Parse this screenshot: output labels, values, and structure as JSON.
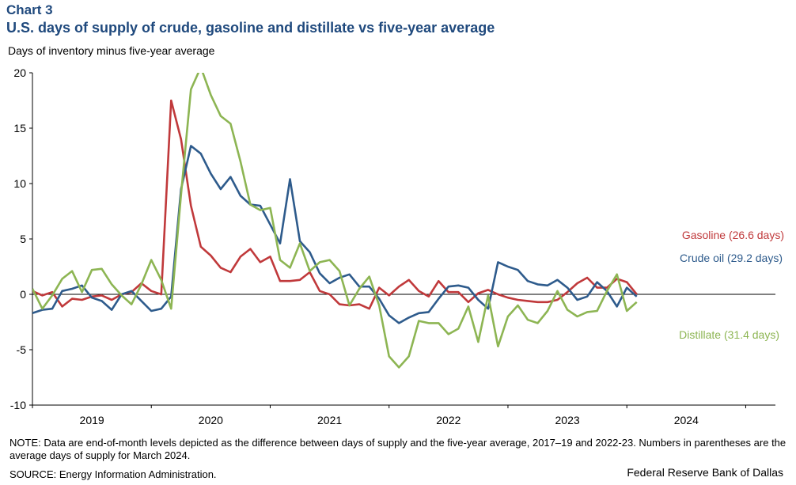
{
  "header": {
    "chart_label": "Chart 3",
    "title": "U.S. days of supply of crude, gasoline and distillate vs five-year average",
    "y_axis_title": "Days of inventory  minus five-year average"
  },
  "footer": {
    "note": "NOTE: Data are end-of-month levels depicted as the difference between days of supply and the five-year average, 2017–19 and 2022-23. Numbers in parentheses are the average days of supply for March 2024.",
    "source": "SOURCE: Energy Information Administration.",
    "credit": "Federal Reserve Bank of Dallas"
  },
  "chart_data": {
    "type": "line",
    "title": "U.S. days of supply of crude, gasoline and distillate vs five-year average",
    "ylabel": "Days of inventory  minus five-year average",
    "xlabel": "",
    "ylim": [
      -10,
      20
    ],
    "xlim": [
      2018.5,
      2024.75
    ],
    "yticks": [
      -10,
      -5,
      0,
      5,
      10,
      15,
      20
    ],
    "ytick_labels": [
      "-10",
      "-5",
      "0",
      "5",
      "10",
      "15",
      "20"
    ],
    "xtick_labels": [
      "2019",
      "2020",
      "2021",
      "2022",
      "2023",
      "2024"
    ],
    "xtick_positions": [
      2019.0,
      2020.0,
      2021.0,
      2022.0,
      2023.0,
      2024.0
    ],
    "x_start": 2018.5,
    "x_step_years": 0.08333,
    "grid": false,
    "series": [
      {
        "name": "Gasoline",
        "legend": "Gasoline (26.6 days)",
        "color": "#c0393b",
        "values": [
          0.3,
          -0.1,
          0.2,
          -1.1,
          -0.4,
          -0.5,
          -0.2,
          -0.1,
          -0.5,
          0.0,
          0.2,
          1.0,
          0.3,
          0.0,
          17.5,
          14.0,
          8.0,
          4.3,
          3.5,
          2.4,
          2.0,
          3.4,
          4.1,
          2.9,
          3.4,
          1.2,
          1.2,
          1.3,
          2.0,
          0.3,
          0.0,
          -0.9,
          -1.0,
          -0.9,
          -1.3,
          0.6,
          -0.1,
          0.7,
          1.3,
          0.3,
          -0.2,
          1.2,
          0.2,
          0.2,
          -0.7,
          0.1,
          0.4,
          0.0,
          -0.3,
          -0.5,
          -0.6,
          -0.7,
          -0.7,
          -0.5,
          0.2,
          1.0,
          1.5,
          0.6,
          0.6,
          1.4,
          1.1,
          0.0
        ]
      },
      {
        "name": "Crude oil",
        "legend": "Crude oil (29.2 days)",
        "color": "#2e5b8c",
        "values": [
          -1.7,
          -1.4,
          -1.3,
          0.3,
          0.5,
          0.8,
          -0.3,
          -0.6,
          -1.4,
          0.0,
          0.3,
          -0.6,
          -1.5,
          -1.3,
          -0.2,
          9.5,
          13.4,
          12.7,
          10.9,
          9.5,
          10.6,
          8.9,
          8.1,
          8.0,
          6.3,
          4.6,
          10.4,
          4.8,
          3.8,
          1.9,
          1.0,
          1.5,
          1.8,
          0.7,
          0.7,
          -0.4,
          -1.9,
          -2.6,
          -2.1,
          -1.7,
          -1.6,
          -0.4,
          0.7,
          0.8,
          0.6,
          -0.5,
          -1.3,
          2.9,
          2.5,
          2.2,
          1.2,
          0.9,
          0.8,
          1.3,
          0.6,
          -0.5,
          -0.2,
          1.1,
          0.3,
          -1.1,
          0.6,
          -0.2
        ]
      },
      {
        "name": "Distillate",
        "legend": "Distillate (31.4 days)",
        "color": "#8db553",
        "values": [
          0.5,
          -1.3,
          -0.1,
          1.4,
          2.1,
          0.2,
          2.2,
          2.3,
          0.9,
          -0.1,
          -0.9,
          0.9,
          3.1,
          1.3,
          -1.3,
          9.0,
          18.5,
          20.5,
          18.0,
          16.1,
          15.4,
          12.0,
          8.1,
          7.6,
          7.8,
          3.1,
          2.4,
          4.6,
          2.1,
          2.9,
          3.1,
          2.1,
          -1.0,
          0.5,
          1.6,
          -1.0,
          -5.6,
          -6.6,
          -5.6,
          -2.4,
          -2.6,
          -2.6,
          -3.6,
          -3.1,
          -1.1,
          -4.3,
          -0.1,
          -4.7,
          -2.0,
          -1.0,
          -2.3,
          -2.6,
          -1.5,
          0.3,
          -1.4,
          -2.0,
          -1.6,
          -1.5,
          0.3,
          1.8,
          -1.5,
          -0.7
        ]
      }
    ],
    "zero_line": 0
  }
}
